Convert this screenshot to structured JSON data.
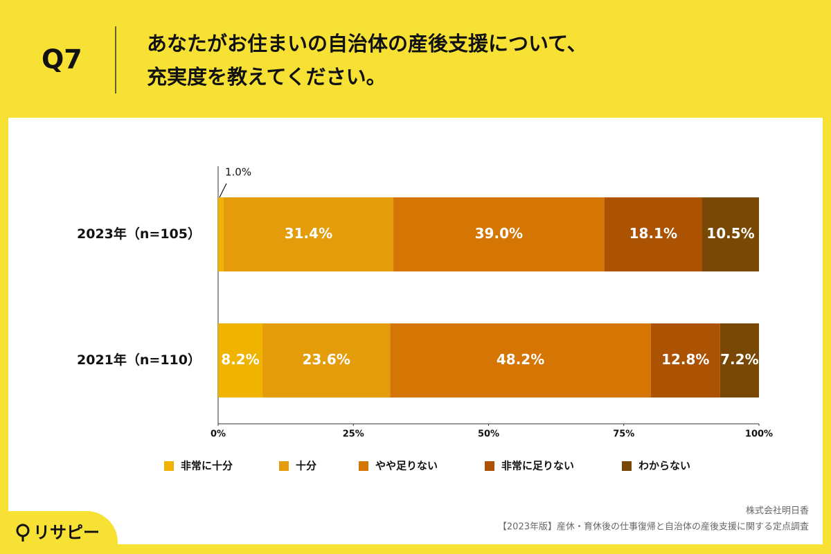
{
  "chart_data": {
    "type": "bar",
    "orientation": "horizontal",
    "stacked": true,
    "question": "Q7",
    "title": [
      "あなたがお住まいの自治体の産後支援について、",
      "充実度を教えてください。"
    ],
    "categories": [
      "2023年（n=105）",
      "2021年（n=110）"
    ],
    "series": [
      {
        "name": "非常に十分",
        "color": "#f0b400",
        "values": [
          1.0,
          8.2
        ],
        "value_labels": [
          "1.0%",
          "8.2%"
        ]
      },
      {
        "name": "十分",
        "color": "#e59c0a",
        "values": [
          31.4,
          23.6
        ],
        "value_labels": [
          "31.4%",
          "23.6%"
        ]
      },
      {
        "name": "やや足りない",
        "color": "#d47504",
        "values": [
          39.0,
          48.2
        ],
        "value_labels": [
          "39.0%",
          "48.2%"
        ]
      },
      {
        "name": "非常に足りない",
        "color": "#ac5203",
        "values": [
          18.1,
          12.8
        ],
        "value_labels": [
          "18.1%",
          "12.8%"
        ]
      },
      {
        "name": "わからない",
        "color": "#7a4805",
        "values": [
          10.5,
          7.2
        ],
        "value_labels": [
          "10.5%",
          "7.2%"
        ]
      }
    ],
    "xlim": [
      0,
      100
    ],
    "xticks": [
      {
        "value": 0,
        "label": "0%"
      },
      {
        "value": 25,
        "label": "25%"
      },
      {
        "value": 50,
        "label": "50%"
      },
      {
        "value": 75,
        "label": "75%"
      },
      {
        "value": 100,
        "label": "100%"
      }
    ],
    "grid": false,
    "legend": "bottom",
    "source": [
      "株式会社明日香",
      "【2023年版】産休・育休後の仕事復帰と自治体の産後支援に関する定点調査"
    ],
    "logo": "リサピー"
  }
}
